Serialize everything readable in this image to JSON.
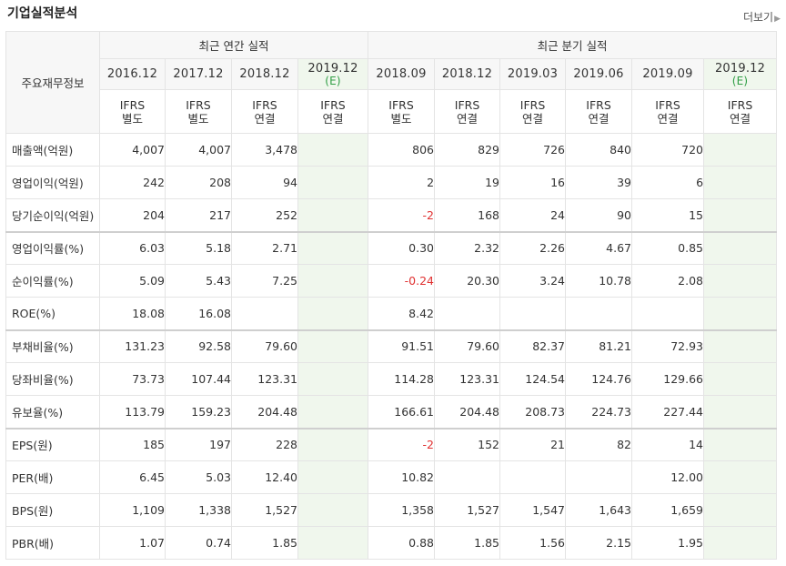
{
  "header": {
    "title": "기업실적분석",
    "more_label": "더보기"
  },
  "table": {
    "corner_label": "주요재무정보",
    "annual_group": "최근 연간 실적",
    "quarter_group": "최근 분기 실적",
    "annual_periods": [
      {
        "year": "2016.12",
        "est": ""
      },
      {
        "year": "2017.12",
        "est": ""
      },
      {
        "year": "2018.12",
        "est": ""
      },
      {
        "year": "2019.12",
        "est": "(E)"
      }
    ],
    "quarter_periods": [
      {
        "year": "2018.09",
        "est": ""
      },
      {
        "year": "2018.12",
        "est": ""
      },
      {
        "year": "2019.03",
        "est": ""
      },
      {
        "year": "2019.06",
        "est": ""
      },
      {
        "year": "2019.09",
        "est": ""
      },
      {
        "year": "2019.12",
        "est": "(E)"
      }
    ],
    "ifrs": [
      {
        "l1": "IFRS",
        "l2": "별도"
      },
      {
        "l1": "IFRS",
        "l2": "별도"
      },
      {
        "l1": "IFRS",
        "l2": "연결"
      },
      {
        "l1": "IFRS",
        "l2": "연결"
      },
      {
        "l1": "IFRS",
        "l2": "별도"
      },
      {
        "l1": "IFRS",
        "l2": "연결"
      },
      {
        "l1": "IFRS",
        "l2": "연결"
      },
      {
        "l1": "IFRS",
        "l2": "연결"
      },
      {
        "l1": "IFRS",
        "l2": "연결"
      },
      {
        "l1": "IFRS",
        "l2": "연결"
      }
    ],
    "rows": [
      {
        "label": "매출액(억원)",
        "values": [
          "4,007",
          "4,007",
          "3,478",
          "",
          "806",
          "829",
          "726",
          "840",
          "720",
          ""
        ]
      },
      {
        "label": "영업이익(억원)",
        "values": [
          "242",
          "208",
          "94",
          "",
          "2",
          "19",
          "16",
          "39",
          "6",
          ""
        ]
      },
      {
        "label": "당기순이익(억원)",
        "values": [
          "204",
          "217",
          "252",
          "",
          "-2",
          "168",
          "24",
          "90",
          "15",
          ""
        ]
      },
      {
        "label": "영업이익률(%)",
        "values": [
          "6.03",
          "5.18",
          "2.71",
          "",
          "0.30",
          "2.32",
          "2.26",
          "4.67",
          "0.85",
          ""
        ]
      },
      {
        "label": "순이익률(%)",
        "values": [
          "5.09",
          "5.43",
          "7.25",
          "",
          "-0.24",
          "20.30",
          "3.24",
          "10.78",
          "2.08",
          ""
        ]
      },
      {
        "label": "ROE(%)",
        "values": [
          "18.08",
          "16.08",
          "",
          "",
          "8.42",
          "",
          "",
          "",
          "",
          ""
        ]
      },
      {
        "label": "부채비율(%)",
        "values": [
          "131.23",
          "92.58",
          "79.60",
          "",
          "91.51",
          "79.60",
          "82.37",
          "81.21",
          "72.93",
          ""
        ]
      },
      {
        "label": "당좌비율(%)",
        "values": [
          "73.73",
          "107.44",
          "123.31",
          "",
          "114.28",
          "123.31",
          "124.54",
          "124.76",
          "129.66",
          ""
        ]
      },
      {
        "label": "유보율(%)",
        "values": [
          "113.79",
          "159.23",
          "204.48",
          "",
          "166.61",
          "204.48",
          "208.73",
          "224.73",
          "227.44",
          ""
        ]
      },
      {
        "label": "EPS(원)",
        "values": [
          "185",
          "197",
          "228",
          "",
          "-2",
          "152",
          "21",
          "82",
          "14",
          ""
        ]
      },
      {
        "label": "PER(배)",
        "values": [
          "6.45",
          "5.03",
          "12.40",
          "",
          "10.82",
          "",
          "",
          "",
          "12.00",
          ""
        ]
      },
      {
        "label": "BPS(원)",
        "values": [
          "1,109",
          "1,338",
          "1,527",
          "",
          "1,358",
          "1,527",
          "1,547",
          "1,643",
          "1,659",
          ""
        ]
      },
      {
        "label": "PBR(배)",
        "values": [
          "1.07",
          "0.74",
          "1.85",
          "",
          "0.88",
          "1.85",
          "1.56",
          "2.15",
          "1.95",
          ""
        ]
      }
    ],
    "separator_before_rows": [
      3,
      6,
      9
    ]
  }
}
